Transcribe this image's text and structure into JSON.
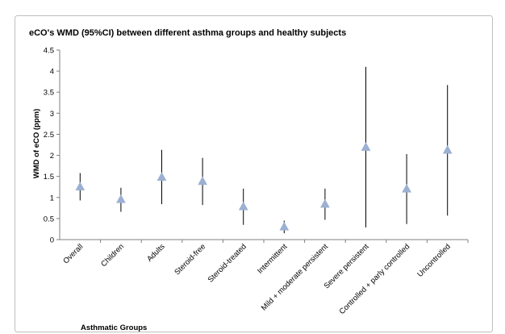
{
  "chart_data": {
    "type": "scatter",
    "title": "eCO's WMD (95%CI) between different asthma groups and healthy subjects",
    "xlabel": "Asthmatic Groups",
    "ylabel": "WMD of eCO  (ppm)",
    "ylim": [
      0,
      4.5
    ],
    "yticks": [
      "0",
      "0.5",
      "1",
      "1.5",
      "2",
      "2.5",
      "3",
      "3.5",
      "4",
      "4.5"
    ],
    "grid": false,
    "marker_color": "#9bb0d3",
    "categories": [
      "Overall",
      "Children",
      "Adults",
      "Steroid-free",
      "Steroid-treated",
      "Intermittent",
      "Mild + moderate persistent",
      "Severe persistent",
      "Controlled + parly controlled",
      "Uncontrolled"
    ],
    "series": [
      {
        "values": [
          1.25,
          0.95,
          1.48,
          1.38,
          0.78,
          0.3,
          0.84,
          2.19,
          1.2,
          2.12
        ],
        "ci_lower": [
          0.93,
          0.66,
          0.84,
          0.82,
          0.35,
          0.15,
          0.47,
          0.29,
          0.37,
          0.57
        ],
        "ci_upper": [
          1.58,
          1.23,
          2.13,
          1.94,
          1.21,
          0.45,
          1.21,
          4.1,
          2.03,
          3.67
        ]
      }
    ]
  }
}
